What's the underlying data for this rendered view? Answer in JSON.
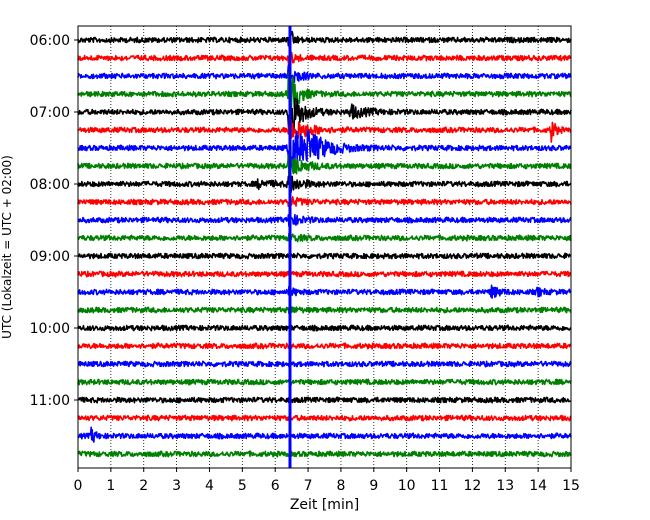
{
  "chart_data": {
    "type": "line",
    "title": "",
    "xlabel": "Zeit  [min]",
    "ylabel": "UTC (Lokalzeit = UTC + 02:00)",
    "xlim": [
      0,
      15
    ],
    "x_ticks": [
      0,
      1,
      2,
      3,
      4,
      5,
      6,
      7,
      8,
      9,
      10,
      11,
      12,
      13,
      14,
      15
    ],
    "y_tick_labels": [
      "06:00",
      "07:00",
      "08:00",
      "09:00",
      "10:00",
      "11:00"
    ],
    "grid": "vertical-dotted",
    "trace_colors": [
      "#000000",
      "#ff0000",
      "#0000ff",
      "#008000"
    ],
    "traces": [
      {
        "start": "06:00",
        "color": "#000000"
      },
      {
        "start": "06:15",
        "color": "#ff0000"
      },
      {
        "start": "06:30",
        "color": "#0000ff"
      },
      {
        "start": "06:45",
        "color": "#008000"
      },
      {
        "start": "07:00",
        "color": "#000000"
      },
      {
        "start": "07:15",
        "color": "#ff0000"
      },
      {
        "start": "07:30",
        "color": "#0000ff"
      },
      {
        "start": "07:45",
        "color": "#008000"
      },
      {
        "start": "08:00",
        "color": "#000000"
      },
      {
        "start": "08:15",
        "color": "#ff0000"
      },
      {
        "start": "08:30",
        "color": "#0000ff"
      },
      {
        "start": "08:45",
        "color": "#008000"
      },
      {
        "start": "09:00",
        "color": "#000000"
      },
      {
        "start": "09:15",
        "color": "#ff0000"
      },
      {
        "start": "09:30",
        "color": "#0000ff"
      },
      {
        "start": "09:45",
        "color": "#008000"
      },
      {
        "start": "10:00",
        "color": "#000000"
      },
      {
        "start": "10:15",
        "color": "#ff0000"
      },
      {
        "start": "10:30",
        "color": "#0000ff"
      },
      {
        "start": "10:45",
        "color": "#008000"
      },
      {
        "start": "11:00",
        "color": "#000000"
      },
      {
        "start": "11:15",
        "color": "#ff0000"
      },
      {
        "start": "11:30",
        "color": "#0000ff"
      },
      {
        "start": "11:45",
        "color": "#008000"
      }
    ],
    "marker": {
      "x": 6.45,
      "color": "#0000ff"
    }
  }
}
